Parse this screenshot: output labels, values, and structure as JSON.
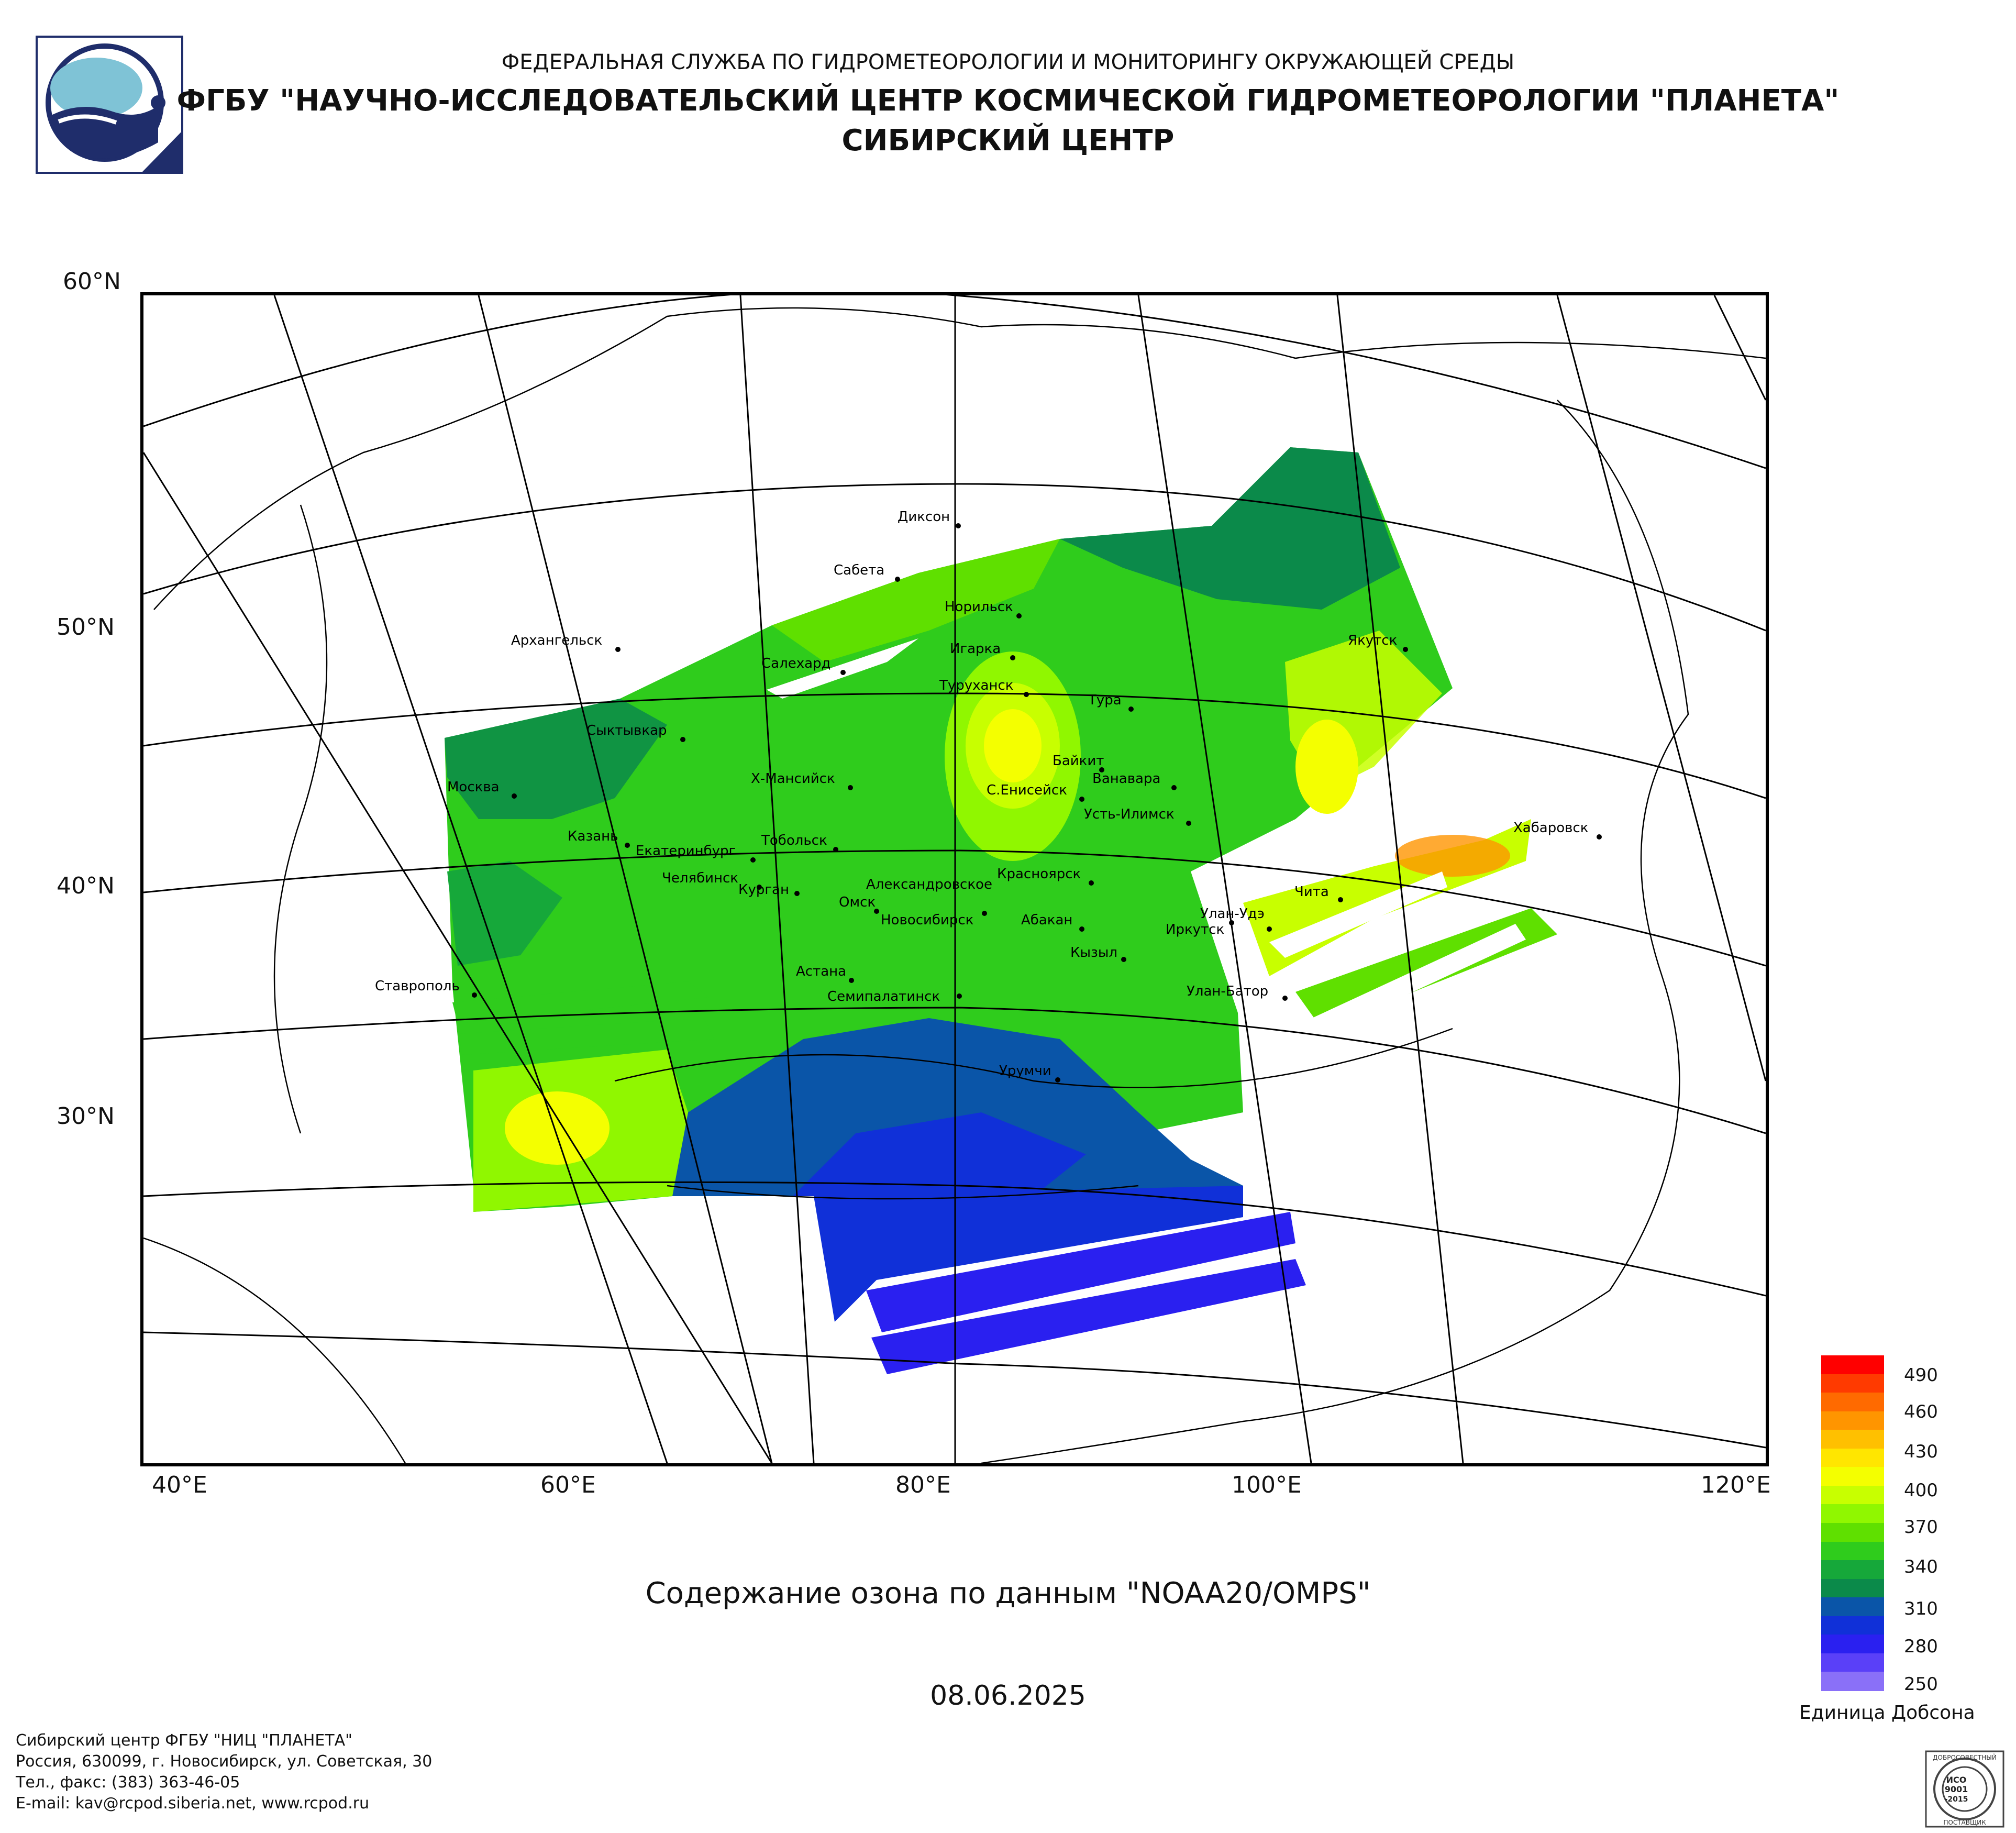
{
  "header": {
    "line1": "ФЕДЕРАЛЬНАЯ СЛУЖБА ПО ГИДРОМЕТЕОРОЛОГИИ И МОНИТОРИНГУ ОКРУЖАЮЩЕЙ СРЕДЫ",
    "line2": "ФГБУ \"НАУЧНО-ИССЛЕДОВАТЕЛЬСКИЙ ЦЕНТР КОСМИЧЕСКОЙ ГИДРОМЕТЕОРОЛОГИИ \"ПЛАНЕТА\"",
    "line3": "СИБИРСКИЙ ЦЕНТР"
  },
  "map": {
    "lat_labels": [
      "60°N",
      "50°N",
      "40°N",
      "30°N"
    ],
    "lon_labels": [
      "40°E",
      "60°E",
      "80°E",
      "100°E",
      "120°E"
    ],
    "cities": [
      {
        "name": "Диксон"
      },
      {
        "name": "Сабета"
      },
      {
        "name": "Норильск"
      },
      {
        "name": "Игарка"
      },
      {
        "name": "Салехард"
      },
      {
        "name": "Туруханск"
      },
      {
        "name": "Тура"
      },
      {
        "name": "Якутск"
      },
      {
        "name": "Архангельск"
      },
      {
        "name": "Сыктывкар"
      },
      {
        "name": "Москва"
      },
      {
        "name": "Х-Мансийск"
      },
      {
        "name": "Байкит"
      },
      {
        "name": "Ванавара"
      },
      {
        "name": "С.Енисейск"
      },
      {
        "name": "Усть-Илимск"
      },
      {
        "name": "Казань"
      },
      {
        "name": "Тобольск"
      },
      {
        "name": "Екатеринбург"
      },
      {
        "name": "Хабаровск"
      },
      {
        "name": "Челябинск"
      },
      {
        "name": "Курган"
      },
      {
        "name": "Красноярск"
      },
      {
        "name": "Александровское"
      },
      {
        "name": "Омск"
      },
      {
        "name": "Новосибирск"
      },
      {
        "name": "Абакан"
      },
      {
        "name": "Улан-Удэ"
      },
      {
        "name": "Чита"
      },
      {
        "name": "Иркутск"
      },
      {
        "name": "Кызыл"
      },
      {
        "name": "Астана"
      },
      {
        "name": "Ставрополь"
      },
      {
        "name": "Семипалатинск"
      },
      {
        "name": "Улан-Батор"
      },
      {
        "name": "Урумчи"
      }
    ]
  },
  "caption": "Содержание озона по данным \"NOAA20/OMPS\"",
  "date": "08.06.2025",
  "legend": {
    "unit": "Единица Добсона",
    "ticks": [
      "490",
      "460",
      "430",
      "400",
      "370",
      "340",
      "310",
      "280",
      "250"
    ],
    "colors": [
      "#ff0000",
      "#ff3a00",
      "#ff6a00",
      "#ff9500",
      "#ffc000",
      "#ffe600",
      "#f4ff00",
      "#c8ff00",
      "#90f700",
      "#5fe000",
      "#2fcc1c",
      "#16a83a",
      "#0b8a4a",
      "#0a55a8",
      "#1030d8",
      "#2a20f0",
      "#5a40f8",
      "#8a70f8"
    ]
  },
  "footer": {
    "l1": "Сибирский центр ФГБУ \"НИЦ \"ПЛАНЕТА\"",
    "l2": "Россия, 630099, г. Новосибирск, ул. Советская, 30",
    "l3": "Тел., факс: (383) 363-46-05",
    "l4": "E-mail: kav@rcpod.siberia.net, www.rcpod.ru"
  },
  "iso_stamp": {
    "top": "ДОБРОСОВЕСТНЫЙ",
    "mid1": "ИСО",
    "mid2": "9001",
    "mid3": "-2015",
    "bottom": "ПОСТАВЩИК"
  }
}
